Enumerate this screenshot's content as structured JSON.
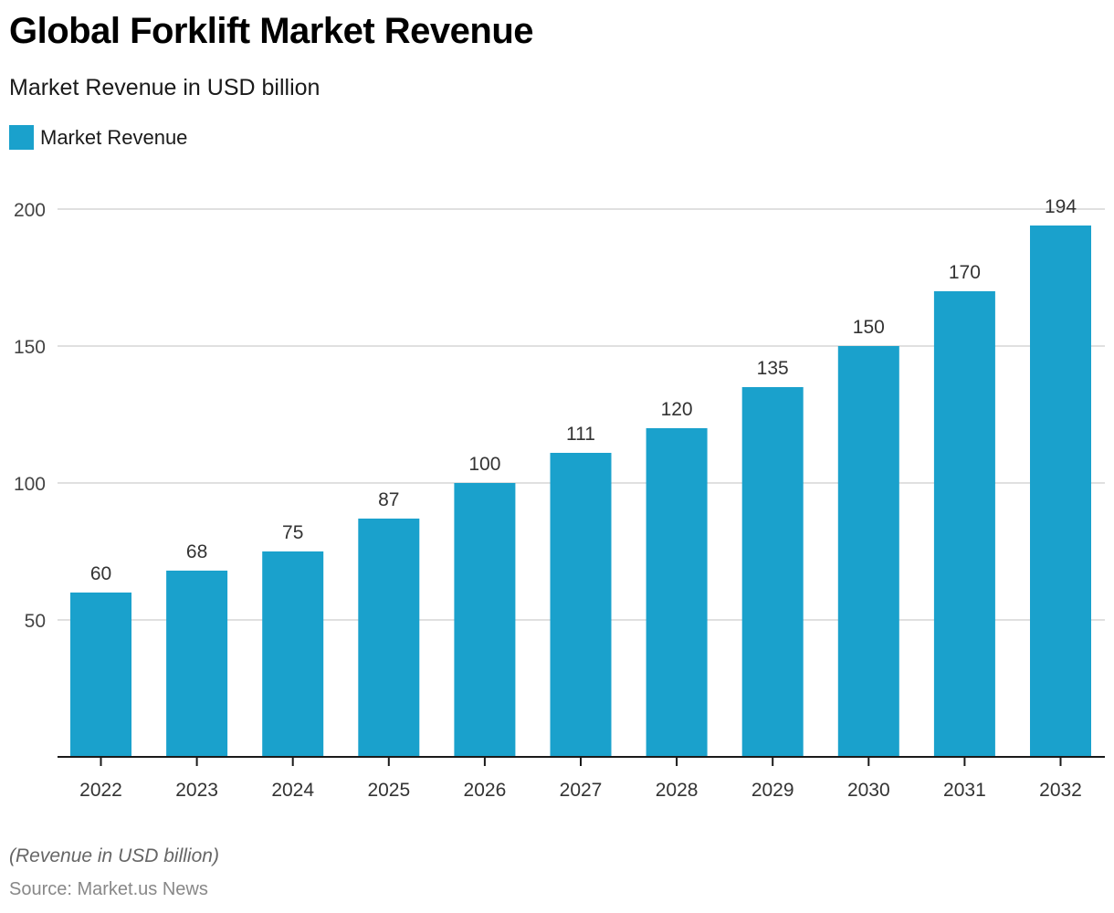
{
  "title": "Global Forklift Market Revenue",
  "subtitle": "Market Revenue in USD billion",
  "legend": [
    {
      "label": "Market Revenue",
      "color": "#1aa1cc"
    }
  ],
  "note": "(Revenue in USD billion)",
  "source": "Source: Market.us News",
  "colors": {
    "bar": "#1aa1cc",
    "grid": "#d6d6d6",
    "axis": "#1a1a1a",
    "tick_label": "#444444",
    "data_label": "#333333"
  },
  "chart_data": {
    "type": "bar",
    "title": "Global Forklift Market Revenue",
    "subtitle": "Market Revenue in USD billion",
    "xlabel": "",
    "ylabel": "",
    "categories": [
      "2022",
      "2023",
      "2024",
      "2025",
      "2026",
      "2027",
      "2028",
      "2029",
      "2030",
      "2031",
      "2032"
    ],
    "series": [
      {
        "name": "Market Revenue",
        "values": [
          60,
          68,
          75,
          87,
          100,
          111,
          120,
          135,
          150,
          170,
          194
        ]
      }
    ],
    "ylim": [
      0,
      200
    ],
    "yticks": [
      50,
      100,
      150,
      200
    ],
    "grid": true,
    "legend_position": "top-left",
    "data_labels": true
  }
}
